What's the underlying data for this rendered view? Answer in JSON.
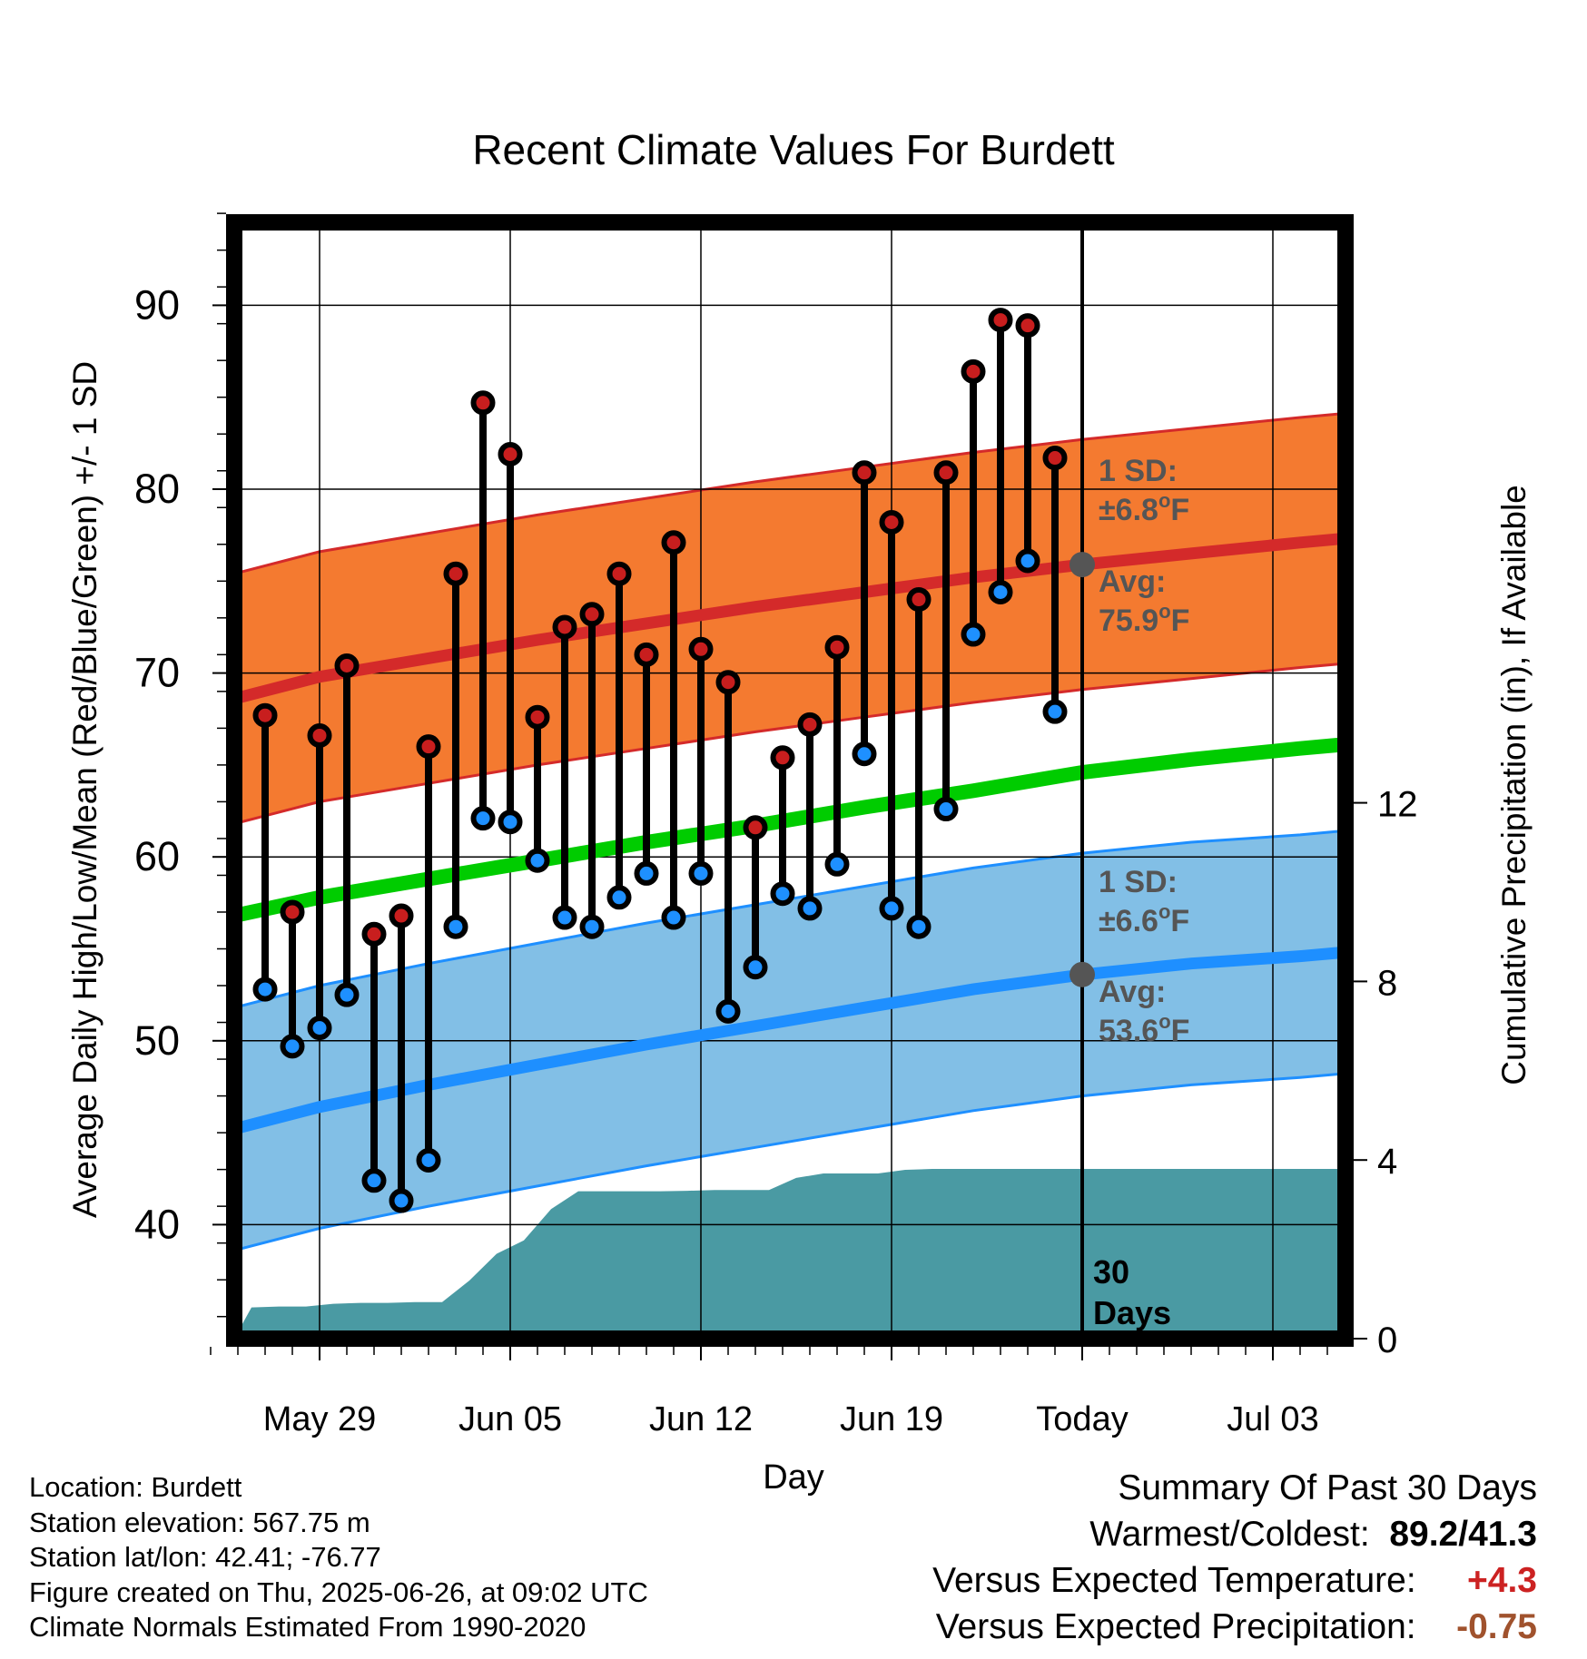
{
  "chart_data": {
    "type": "line",
    "title": "Recent Climate Values For Burdett",
    "xlabel": "Day",
    "ylabel": "Average Daily High/Low/Mean (Red/Blue/Green) +/- 1 SD",
    "y2label": "Cumulative Precipitation (in), If Available",
    "x_tick_labels": [
      "May 29",
      "Jun 05",
      "Jun 12",
      "Jun 19",
      "Today",
      "Jul 03"
    ],
    "x_range_days": [
      -32.7,
      -8.7
    ],
    "ylim": [
      33,
      95
    ],
    "y_ticks": [
      40,
      50,
      60,
      70,
      80,
      90
    ],
    "y2lim": [
      -0.08,
      14.5
    ],
    "y2_ticks": [
      0,
      4,
      8,
      12
    ],
    "grid": true,
    "today_label": "Today",
    "period_label": [
      "30",
      "Days"
    ],
    "x": [
      "2025-05-27",
      "2025-05-28",
      "2025-05-29",
      "2025-05-30",
      "2025-05-31",
      "2025-06-01",
      "2025-06-02",
      "2025-06-03",
      "2025-06-04",
      "2025-06-05",
      "2025-06-06",
      "2025-06-07",
      "2025-06-08",
      "2025-06-09",
      "2025-06-10",
      "2025-06-11",
      "2025-06-12",
      "2025-06-13",
      "2025-06-14",
      "2025-06-15",
      "2025-06-16",
      "2025-06-17",
      "2025-06-18",
      "2025-06-19",
      "2025-06-20",
      "2025-06-21",
      "2025-06-22",
      "2025-06-23",
      "2025-06-24",
      "2025-06-25"
    ],
    "series": [
      {
        "name": "High",
        "color": "#c81e1e",
        "values": [
          67.7,
          57.0,
          66.6,
          70.4,
          55.8,
          56.8,
          66.0,
          75.4,
          84.7,
          81.9,
          67.6,
          72.5,
          73.2,
          75.4,
          71.0,
          77.1,
          71.3,
          69.5,
          61.6,
          65.4,
          67.2,
          71.4,
          80.9,
          78.2,
          74.0,
          80.9,
          86.4,
          89.2,
          88.9,
          81.7
        ]
      },
      {
        "name": "Low",
        "color": "#1e90ff",
        "values": [
          52.8,
          49.7,
          50.7,
          52.5,
          42.4,
          41.3,
          43.5,
          56.2,
          62.1,
          61.9,
          59.8,
          56.7,
          56.2,
          57.8,
          59.1,
          56.7,
          59.1,
          51.6,
          54.0,
          58.0,
          57.2,
          59.6,
          65.6,
          57.2,
          56.2,
          62.6,
          72.1,
          74.4,
          76.1,
          67.9
        ]
      }
    ],
    "normals_x": [
      -32.5,
      -28,
      -24,
      -20,
      -16,
      -12,
      -8,
      -4,
      0,
      4,
      8,
      9.5
    ],
    "normal_high": [
      68.6,
      69.8,
      70.8,
      71.8,
      72.7,
      73.6,
      74.4,
      75.2,
      75.9,
      76.5,
      77.1,
      77.3
    ],
    "normal_high_sd": 6.8,
    "normal_mean": [
      56.8,
      57.8,
      58.8,
      59.8,
      60.8,
      61.7,
      62.7,
      63.6,
      64.6,
      65.3,
      65.9,
      66.1
    ],
    "normal_low": [
      45.2,
      46.4,
      47.6,
      48.7,
      49.8,
      50.8,
      51.8,
      52.8,
      53.6,
      54.2,
      54.6,
      54.8
    ],
    "normal_low_sd": 6.6,
    "precip_x": [
      -32.7,
      -31.7,
      -30.5,
      -29.5,
      -28.5,
      -27.5,
      -26.5,
      -25.5,
      -24.5,
      -23.5,
      -22.5,
      -21.5,
      -20.5,
      -19.5,
      -18.5,
      -17.5,
      -16.5,
      -15.5,
      -14.5,
      -13.5,
      -12.5,
      -11.5,
      -10.5,
      -9.5,
      -8.5,
      -7.5,
      -6.5,
      -5.5,
      -4.5,
      -3.5,
      -2.5,
      -1.5,
      -0.5,
      0,
      9.5
    ],
    "precip_cum": [
      0,
      0,
      0.7,
      0.72,
      0.72,
      0.78,
      0.8,
      0.8,
      0.82,
      0.82,
      1.3,
      1.9,
      2.2,
      2.9,
      3.3,
      3.3,
      3.3,
      3.3,
      3.31,
      3.33,
      3.33,
      3.33,
      3.6,
      3.7,
      3.7,
      3.7,
      3.78,
      3.8,
      3.8,
      3.8,
      3.8,
      3.8,
      3.8,
      3.8,
      3.8
    ],
    "annotations": {
      "high_sd": [
        "1 SD:",
        "±6.8",
        "o",
        "F"
      ],
      "high_avg": [
        "Avg:",
        "75.9",
        "o",
        "F"
      ],
      "low_sd": [
        "1 SD:",
        "±6.6",
        "o",
        "F"
      ],
      "low_avg": [
        "Avg:",
        "53.6",
        "o",
        "F"
      ]
    },
    "colors": {
      "high_band": "#f47a30",
      "high_line": "#d42a2a",
      "mean_line": "#00cc00",
      "low_band": "#82bfe6",
      "low_line": "#1e8fff",
      "precip": "#4a9aa3",
      "annotation": "#555555"
    }
  },
  "info": {
    "location": "Location: Burdett",
    "elevation": "Station elevation: 567.75 m",
    "latlon": "Station lat/lon: 42.41; -76.77",
    "created": "Figure created on Thu, 2025-06-26, at 09:02 UTC",
    "normals": "Climate Normals Estimated From 1990-2020"
  },
  "summary": {
    "title": "Summary Of Past 30 Days",
    "warm_cold_label": "Warmest/Coldest:",
    "warm_cold_value": "89.2/41.3",
    "temp_label": "Versus Expected Temperature:",
    "temp_value": "+4.3",
    "temp_color": "#cc2222",
    "precip_label": "Versus Expected Precipitation:",
    "precip_value": "-0.75",
    "precip_color": "#a0522d"
  }
}
